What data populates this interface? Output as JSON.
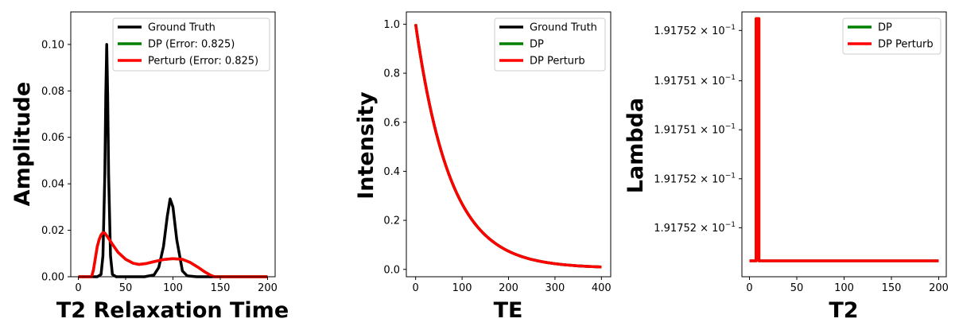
{
  "chart_data": [
    {
      "type": "line",
      "xlabel": "T2 Relaxation Time",
      "ylabel": "Amplitude",
      "xlim": [
        -8,
        208
      ],
      "ylim": [
        0,
        0.114
      ],
      "xticks": [
        0,
        50,
        100,
        150,
        200
      ],
      "xtick_labels": [
        "0",
        "50",
        "100",
        "150",
        "200"
      ],
      "yticks": [
        0,
        0.02,
        0.04,
        0.06,
        0.08,
        0.1
      ],
      "ytick_labels": [
        "0.00",
        "0.02",
        "0.04",
        "0.06",
        "0.08",
        "0.10"
      ],
      "legend_position": "top-right",
      "series": [
        {
          "name": "Ground Truth",
          "color": "#000000",
          "x": [
            0,
            20,
            24,
            26,
            28,
            29,
            30,
            31,
            32,
            34,
            36,
            40,
            50,
            70,
            80,
            85,
            90,
            94,
            97,
            100,
            104,
            110,
            115,
            125,
            200
          ],
          "y": [
            0,
            0,
            0.001,
            0.009,
            0.044,
            0.078,
            0.1,
            0.078,
            0.044,
            0.009,
            0.001,
            0,
            0,
            0,
            0.0008,
            0.004,
            0.013,
            0.026,
            0.0335,
            0.03,
            0.016,
            0.0025,
            0.0004,
            0,
            0
          ]
        },
        {
          "name": "DP (Error: 0.825)",
          "color": "#008000",
          "x": [
            0,
            14,
            16,
            18,
            20,
            22,
            24,
            26,
            28,
            32,
            36,
            42,
            50,
            58,
            64,
            72,
            80,
            90,
            100,
            110,
            118,
            126,
            134,
            140,
            144,
            200
          ],
          "y": [
            0,
            0,
            0.003,
            0.008,
            0.013,
            0.016,
            0.018,
            0.019,
            0.0188,
            0.0165,
            0.014,
            0.0105,
            0.0075,
            0.0058,
            0.0053,
            0.0057,
            0.0065,
            0.0074,
            0.0078,
            0.0075,
            0.0062,
            0.0042,
            0.002,
            0.0006,
            0,
            0
          ]
        },
        {
          "name": "Perturb (Error: 0.825)",
          "color": "#ff0000",
          "x": [
            0,
            14,
            16,
            18,
            20,
            22,
            24,
            26,
            28,
            32,
            36,
            42,
            50,
            58,
            64,
            72,
            80,
            90,
            100,
            110,
            118,
            126,
            134,
            140,
            144,
            200
          ],
          "y": [
            0,
            0,
            0.003,
            0.008,
            0.013,
            0.016,
            0.018,
            0.019,
            0.0188,
            0.0165,
            0.014,
            0.0105,
            0.0075,
            0.0058,
            0.0053,
            0.0057,
            0.0065,
            0.0074,
            0.0078,
            0.0075,
            0.0062,
            0.0042,
            0.002,
            0.0006,
            0,
            0
          ]
        }
      ]
    },
    {
      "type": "line",
      "xlabel": "TE",
      "ylabel": "Intensity",
      "xlim": [
        -20,
        420
      ],
      "ylim": [
        -0.03,
        1.05
      ],
      "xticks": [
        0,
        100,
        200,
        300,
        400
      ],
      "xtick_labels": [
        "0",
        "100",
        "200",
        "300",
        "400"
      ],
      "yticks": [
        0,
        0.2,
        0.4,
        0.6,
        0.8,
        1.0
      ],
      "ytick_labels": [
        "0.0",
        "0.2",
        "0.4",
        "0.6",
        "0.8",
        "1.0"
      ],
      "legend_position": "top-right",
      "decay": {
        "x_start": 0,
        "x_end": 400,
        "tau": 75,
        "floor": 0.005
      },
      "series": [
        {
          "name": "Ground Truth",
          "color": "#000000"
        },
        {
          "name": "DP",
          "color": "#008000"
        },
        {
          "name": "DP Perturb",
          "color": "#ff0000"
        }
      ]
    },
    {
      "type": "line",
      "xlabel": "T2",
      "ylabel": "Lambda",
      "xlim": [
        -8,
        208
      ],
      "ylim": [
        0,
        1
      ],
      "yscale": "log",
      "xticks": [
        0,
        50,
        100,
        150,
        200
      ],
      "xtick_labels": [
        "0",
        "50",
        "100",
        "150",
        "200"
      ],
      "yticks": [
        0.74,
        0.555,
        0.37,
        0.185,
        0.93
      ],
      "ytick_labels": [
        {
          "mantissa": "1.91751",
          "base": "10",
          "exp": "−1"
        },
        {
          "mantissa": "1.91751",
          "base": "10",
          "exp": "−1"
        },
        {
          "mantissa": "1.91752",
          "base": "10",
          "exp": "−1"
        },
        {
          "mantissa": "1.91752",
          "base": "10",
          "exp": "−1"
        },
        {
          "mantissa": "1.91752",
          "base": "10",
          "exp": "−1"
        }
      ],
      "legend_position": "top-right",
      "series": [
        {
          "name": "DP",
          "color": "#008000",
          "x": [
            0,
            7,
            7,
            10,
            10,
            200
          ],
          "y": [
            0.06,
            0.06,
            0.975,
            0.975,
            0.06,
            0.06
          ]
        },
        {
          "name": "DP Perturb",
          "color": "#ff0000",
          "x": [
            0,
            7,
            7,
            10,
            10,
            200
          ],
          "y": [
            0.06,
            0.06,
            0.975,
            0.975,
            0.06,
            0.06
          ]
        }
      ]
    }
  ]
}
